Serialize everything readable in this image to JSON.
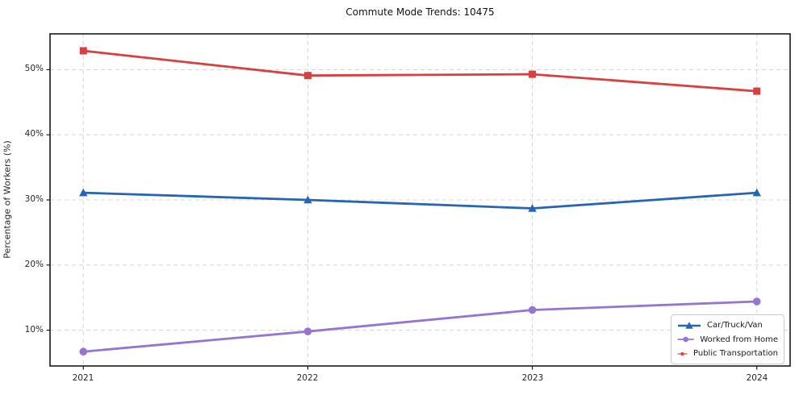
{
  "title": "Commute Mode Trends: 10475",
  "axes": {
    "ylabel": "Percentage of Workers (%)",
    "x_ticks": [
      "2021",
      "2022",
      "2023",
      "2024"
    ],
    "y_ticks": [
      "50%",
      "40%",
      "30%",
      "20%",
      "10%"
    ],
    "y_tick_values": [
      50,
      40,
      30,
      20,
      10
    ]
  },
  "colors": {
    "car": "#2565b8",
    "home": "#9674d4",
    "transit": "#dd3d3d",
    "grid": "#d9d9d9",
    "spine": "#1a1a1a"
  },
  "chart_data": {
    "type": "line",
    "title": "Commute Mode Trends: 10475",
    "xlabel": "",
    "ylabel": "Percentage of Workers (%)",
    "categories": [
      2021,
      2022,
      2023,
      2024
    ],
    "series": [
      {
        "name": "Car/Truck/Van",
        "color": "#2565b8",
        "marker": "triangle",
        "values": [
          31.1,
          30.0,
          28.7,
          31.1
        ]
      },
      {
        "name": "Worked from Home",
        "color": "#9674d4",
        "marker": "circle",
        "values": [
          6.7,
          9.8,
          13.1,
          14.4
        ]
      },
      {
        "name": "Public Transportation",
        "color": "#dd3d3d",
        "marker": "square",
        "values": [
          52.9,
          49.1,
          49.3,
          46.7
        ]
      }
    ],
    "ylim": [
      4.5,
      55.5
    ],
    "grid": true,
    "grid_style": "dashed",
    "legend_position": "lower right"
  }
}
